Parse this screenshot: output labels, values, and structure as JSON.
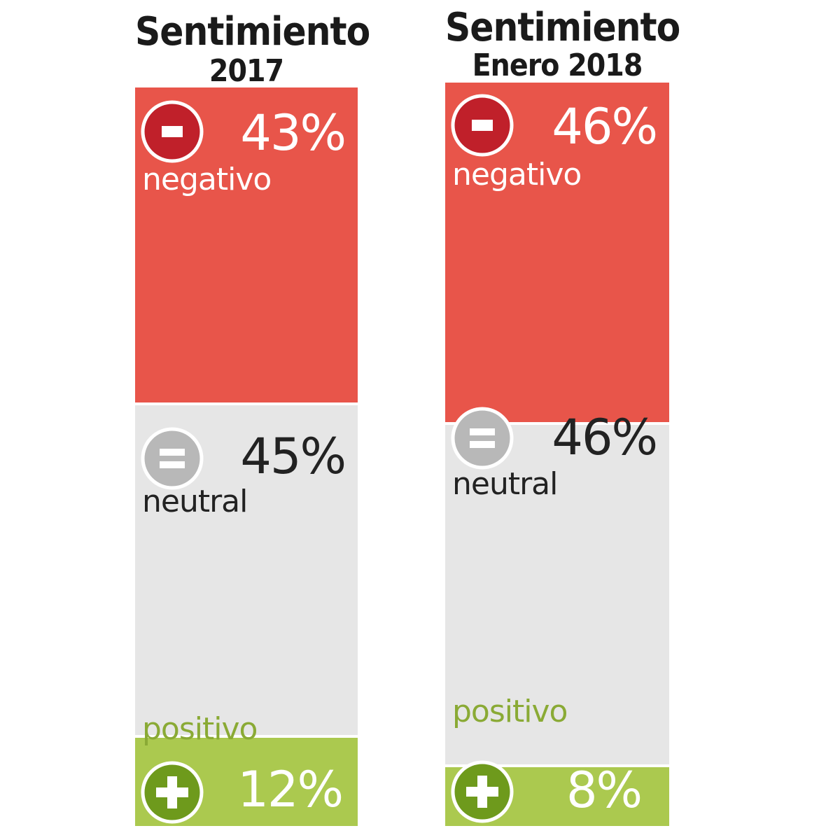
{
  "colors": {
    "negativo": "#e8554a",
    "neutral": "#e6e6e6",
    "positivo": "#abc94f",
    "negativo_icon": "#c0202a",
    "neutral_icon": "#b8b8b8",
    "positivo_icon": "#6e9a1c"
  },
  "icons": {
    "negativo": "minus-circle-icon",
    "neutral": "equals-circle-icon",
    "positivo": "plus-circle-icon"
  },
  "panels": [
    {
      "title": "Sentimiento",
      "subtitle": "2017",
      "negativo": {
        "label": "negativo",
        "pct": "43%"
      },
      "neutral": {
        "label": "neutral",
        "pct": "45%"
      },
      "positivo": {
        "label": "positivo",
        "pct": "12%"
      }
    },
    {
      "title": "Sentimiento",
      "subtitle": "Enero 2018",
      "negativo": {
        "label": "negativo",
        "pct": "46%"
      },
      "neutral": {
        "label": "neutral",
        "pct": "46%"
      },
      "positivo": {
        "label": "positivo",
        "pct": "8%"
      }
    }
  ],
  "chart_data": [
    {
      "type": "bar",
      "title": "Sentimiento",
      "subtitle": "2017",
      "categories": [
        "negativo",
        "neutral",
        "positivo"
      ],
      "values": [
        43,
        45,
        12
      ],
      "unit": "%",
      "stacked": true
    },
    {
      "type": "bar",
      "title": "Sentimiento",
      "subtitle": "Enero 2018",
      "categories": [
        "negativo",
        "neutral",
        "positivo"
      ],
      "values": [
        46,
        46,
        8
      ],
      "unit": "%",
      "stacked": true
    }
  ]
}
